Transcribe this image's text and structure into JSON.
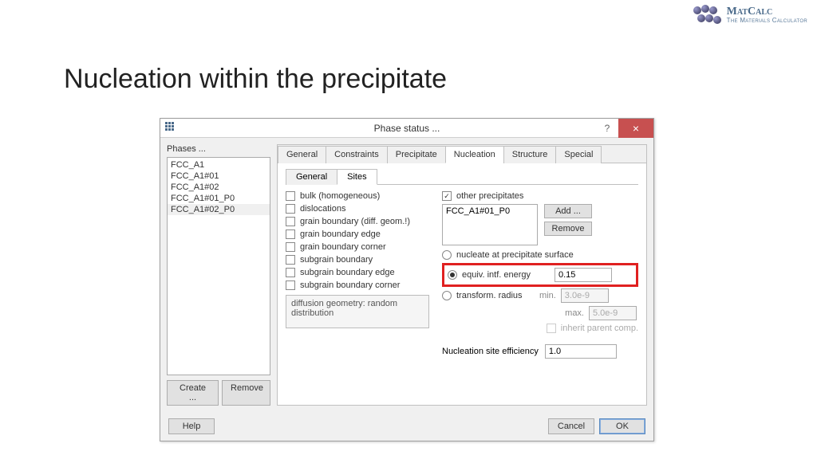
{
  "slide": {
    "title": "Nucleation within the precipitate"
  },
  "logo": {
    "name": "MatCalc",
    "sub": "The Materials Calculator"
  },
  "dialog": {
    "title": "Phase status ...",
    "phases_label": "Phases ...",
    "phases": [
      "FCC_A1",
      "FCC_A1#01",
      "FCC_A1#02",
      "FCC_A1#01_P0",
      "FCC_A1#02_P0"
    ],
    "selected_phase_index": 4,
    "create_btn": "Create ...",
    "remove_btn": "Remove",
    "tabs": [
      "General",
      "Constraints",
      "Precipitate",
      "Nucleation",
      "Structure",
      "Special"
    ],
    "active_tab": 3,
    "subtabs": [
      "General",
      "Sites"
    ],
    "active_subtab": 1,
    "site_checks": [
      {
        "label": "bulk (homogeneous)",
        "checked": false
      },
      {
        "label": "dislocations",
        "checked": false
      },
      {
        "label": "grain boundary (diff. geom.!)",
        "checked": false
      },
      {
        "label": "grain boundary edge",
        "checked": false
      },
      {
        "label": "grain boundary corner",
        "checked": false
      },
      {
        "label": "subgrain boundary",
        "checked": false
      },
      {
        "label": "subgrain boundary edge",
        "checked": false
      },
      {
        "label": "subgrain boundary corner",
        "checked": false
      }
    ],
    "geom_text": "diffusion geometry: random distribution",
    "other_precip_label": "other precipitates",
    "other_precip_checked": true,
    "other_precip_list": [
      "FCC_A1#01_P0"
    ],
    "add_btn": "Add ...",
    "remove2_btn": "Remove",
    "radios": {
      "surface": "nucleate at precipitate surface",
      "equiv": "equiv. intf. energy",
      "transform": "transform. radius"
    },
    "selected_radio": "equiv",
    "equiv_value": "0.15",
    "min_label": "min.",
    "max_label": "max.",
    "min_value": "3.0e-9",
    "max_value": "5.0e-9",
    "inherit_label": "inherit parent comp.",
    "efficiency_label": "Nucleation site efficiency",
    "efficiency_value": "1.0",
    "help_btn": "Help",
    "cancel_btn": "Cancel",
    "ok_btn": "OK"
  },
  "colors": {
    "highlight": "#e02020",
    "close": "#c75050"
  }
}
